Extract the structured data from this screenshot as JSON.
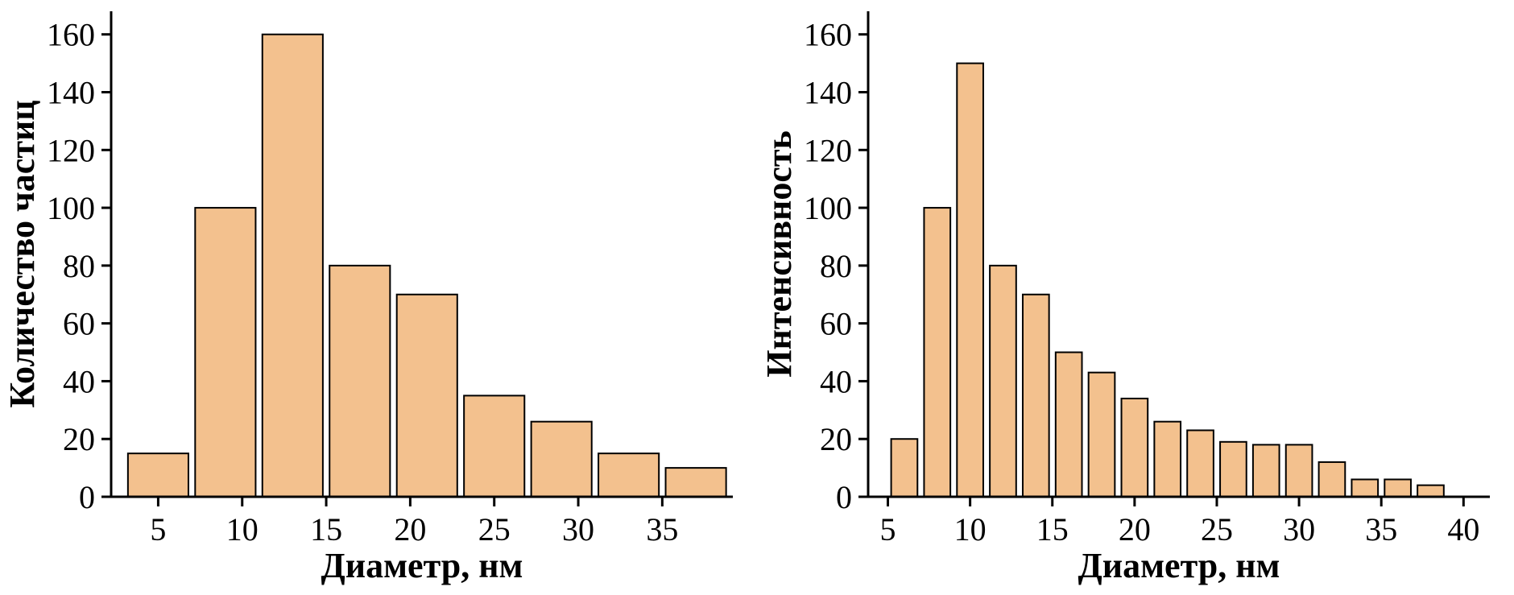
{
  "page": {
    "background_color": "#ffffff"
  },
  "chart_data": [
    {
      "type": "bar",
      "title": "",
      "xlabel": "Диаметр, нм",
      "ylabel": "Количество частиц",
      "bar_color": "#F3C18E",
      "bar_border_color": "#000000",
      "x_centers": [
        5,
        9,
        13,
        17,
        21,
        25,
        29,
        33,
        37
      ],
      "bar_width": 3.6,
      "values": [
        15,
        100,
        160,
        80,
        70,
        35,
        26,
        15,
        10
      ],
      "xlim": [
        2.2,
        39.2
      ],
      "ylim": [
        0,
        168
      ],
      "xticks": [
        5,
        10,
        15,
        20,
        25,
        30,
        35
      ],
      "yticks": [
        0,
        20,
        40,
        60,
        80,
        100,
        120,
        140,
        160
      ],
      "grid": false,
      "legend": "none"
    },
    {
      "type": "bar",
      "title": "",
      "xlabel": "Диаметр, нм",
      "ylabel": "Интенсивность",
      "bar_color": "#F3C18E",
      "bar_border_color": "#000000",
      "x_centers": [
        6,
        8,
        10,
        12,
        14,
        16,
        18,
        20,
        22,
        24,
        26,
        28,
        30,
        32,
        34,
        36,
        38
      ],
      "bar_width": 1.6,
      "values": [
        20,
        100,
        150,
        80,
        70,
        50,
        43,
        34,
        26,
        23,
        19,
        18,
        18,
        12,
        6,
        6,
        4
      ],
      "xlim": [
        3.8,
        41.6
      ],
      "ylim": [
        0,
        168
      ],
      "xticks": [
        5,
        10,
        15,
        20,
        25,
        30,
        35,
        40
      ],
      "yticks": [
        0,
        20,
        40,
        60,
        80,
        100,
        120,
        140,
        160
      ],
      "grid": false,
      "legend": "none"
    }
  ]
}
